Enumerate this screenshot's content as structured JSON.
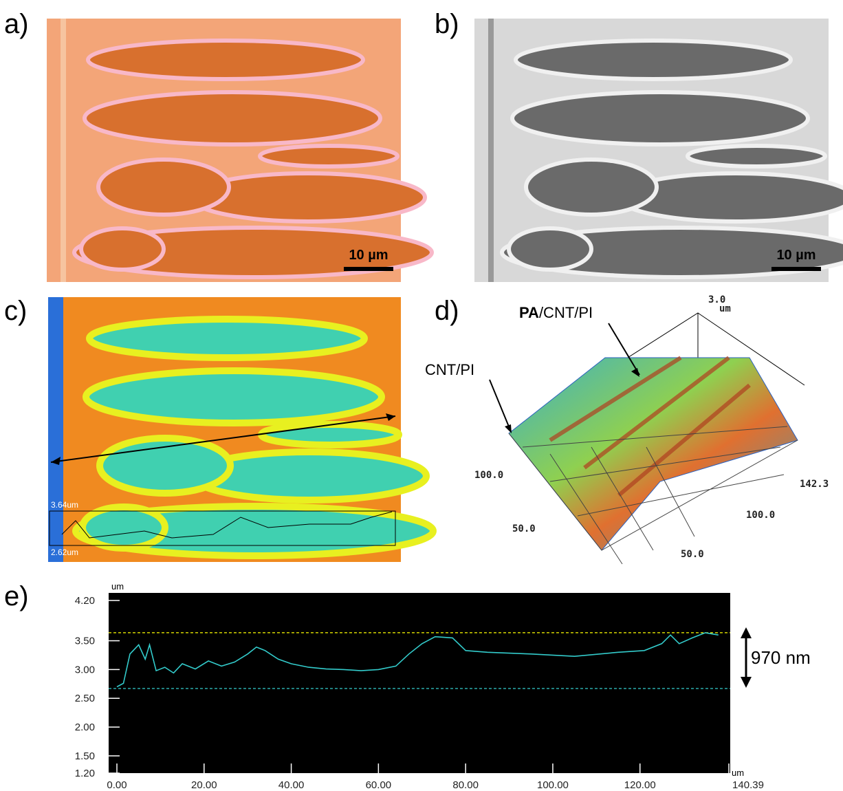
{
  "panels": [
    {
      "label": "a)",
      "scale_bar": "10 µm"
    },
    {
      "label": "b)",
      "scale_bar": "10 µm"
    },
    {
      "label": "c)",
      "max_label": "3.64um",
      "min_label": "2.62um"
    },
    {
      "label": "d)",
      "annotations": [
        "PA",
        "/CNT/PI",
        "CNT/PI"
      ],
      "axis_labels": [
        "3.0",
        "um",
        "100.0",
        "142.3",
        "50.0",
        "100.0",
        "50.0"
      ]
    },
    {
      "label": "e)"
    }
  ],
  "chart_data": {
    "type": "line",
    "x_unit": "um",
    "y_unit": "um",
    "xlim": [
      0,
      140.39
    ],
    "ylim": [
      1.2,
      4.2
    ],
    "xticks": [
      {
        "value": 0,
        "label": "0.00"
      },
      {
        "value": 20,
        "label": "20.00"
      },
      {
        "value": 40,
        "label": "40.00"
      },
      {
        "value": 60,
        "label": "60.00"
      },
      {
        "value": 80,
        "label": "80.00"
      },
      {
        "value": 100,
        "label": "100.00"
      },
      {
        "value": 120,
        "label": "120.00"
      },
      140.39
    ],
    "yticks": [
      {
        "value": 1.2,
        "label": "1.20"
      },
      {
        "value": 1.5,
        "label": "1.50"
      },
      {
        "value": 2,
        "label": "2.00"
      },
      {
        "value": 2.5,
        "label": "2.50"
      },
      {
        "value": 3,
        "label": "3.00"
      },
      {
        "value": 3.5,
        "label": "3.50"
      },
      {
        "value": 4.2,
        "label": "4.20"
      }
    ],
    "x": [
      0,
      1.5,
      3,
      5,
      6.5,
      7.5,
      9,
      11,
      13,
      15,
      18,
      21,
      24,
      27,
      30,
      32,
      34,
      37,
      40,
      44,
      48,
      52,
      56,
      60,
      64,
      67,
      70,
      73,
      77,
      80,
      85,
      95,
      105,
      115,
      121,
      125,
      127,
      129,
      132,
      135,
      138
    ],
    "series": [
      {
        "color": "#33cccc",
        "values": [
          2.7,
          2.76,
          3.27,
          3.43,
          3.18,
          3.43,
          2.98,
          3.04,
          2.94,
          3.1,
          3.01,
          3.15,
          3.06,
          3.13,
          3.27,
          3.39,
          3.33,
          3.18,
          3.1,
          3.04,
          3.01,
          3.0,
          2.98,
          3.0,
          3.06,
          3.27,
          3.45,
          3.57,
          3.55,
          3.33,
          3.3,
          3.27,
          3.23,
          3.3,
          3.33,
          3.45,
          3.6,
          3.45,
          3.55,
          3.64,
          3.6
        ]
      }
    ],
    "reference_lines": [
      {
        "value": 3.64,
        "color": "#ffff00"
      },
      {
        "value": 2.67,
        "color": "#33cccc"
      }
    ],
    "annotation": "970 nm"
  }
}
